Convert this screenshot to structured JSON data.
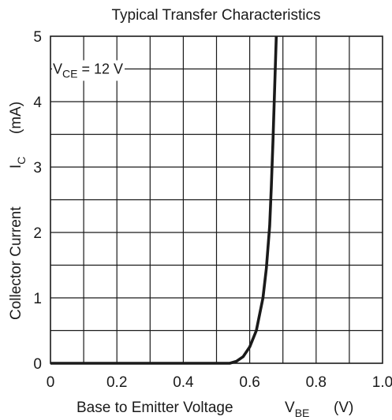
{
  "chart_data": {
    "type": "line",
    "title": "Typical Transfer Characteristics",
    "xlabel": {
      "main": "Base to Emitter Voltage",
      "symbol": "V",
      "subscript": "BE",
      "unit": "(V)"
    },
    "ylabel": {
      "main": "Collector Current",
      "symbol": "I",
      "subscript": "C",
      "unit": "(mA)"
    },
    "xlim": [
      0,
      1.0
    ],
    "ylim": [
      0,
      5
    ],
    "x_ticks": [
      "0",
      "0.2",
      "0.4",
      "0.6",
      "0.8",
      "1.0"
    ],
    "y_ticks": [
      "0",
      "1",
      "2",
      "3",
      "4",
      "5"
    ],
    "grid": true,
    "annotation": {
      "symbol": "V",
      "subscript": "CE",
      "text": " = 12 V",
      "x": 0.0,
      "y": 4.5
    },
    "series": [
      {
        "x": [
          0.0,
          0.54,
          0.56,
          0.58,
          0.6,
          0.62,
          0.64,
          0.65,
          0.66,
          0.665,
          0.67,
          0.675,
          0.68
        ],
        "y": [
          0.0,
          0.0,
          0.03,
          0.1,
          0.25,
          0.5,
          1.0,
          1.45,
          2.1,
          2.7,
          3.4,
          4.2,
          5.0
        ]
      }
    ]
  }
}
